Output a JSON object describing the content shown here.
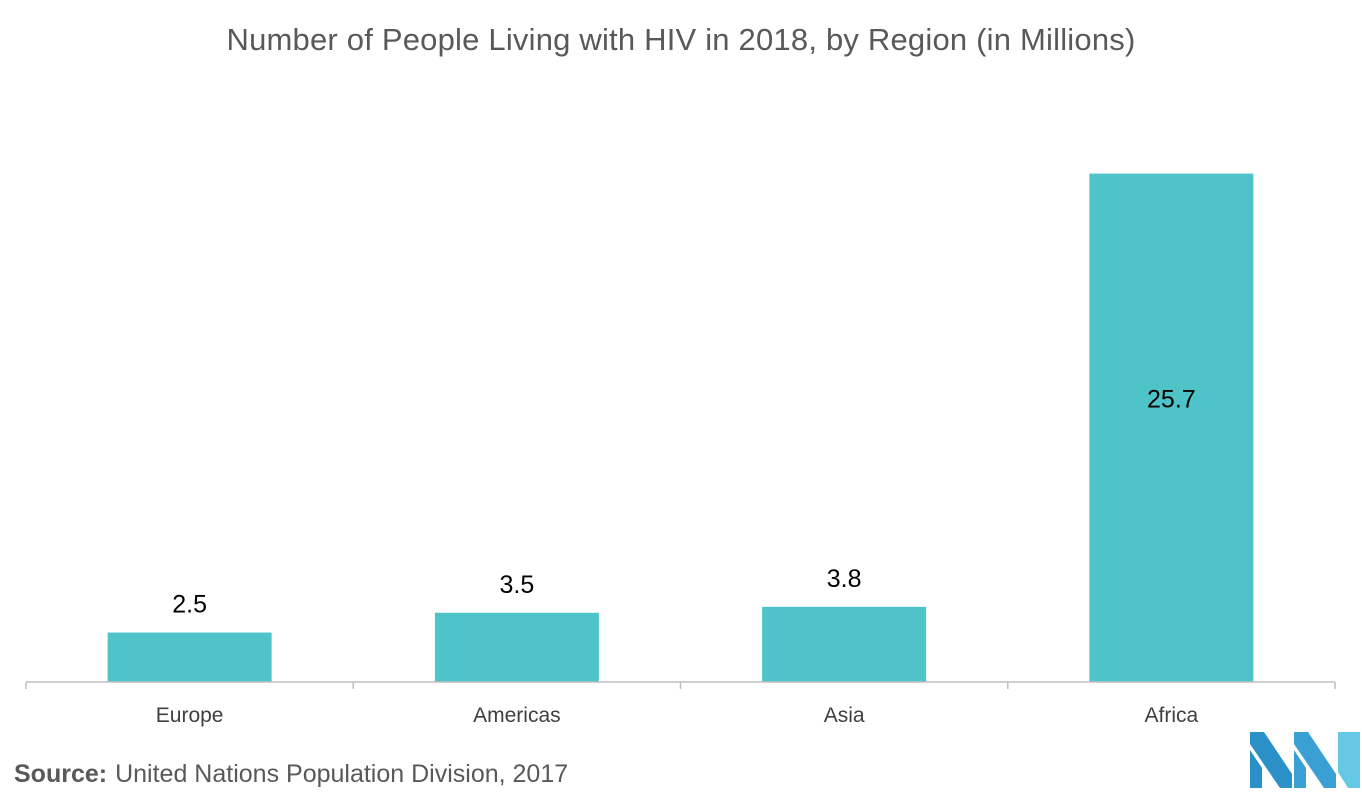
{
  "chart_data": {
    "type": "bar",
    "title": "Number of People Living with HIV in 2018, by Region (in Millions)",
    "categories": [
      "Europe",
      "Americas",
      "Asia",
      "Africa"
    ],
    "values": [
      2.5,
      3.5,
      3.8,
      25.7
    ],
    "xlabel": "",
    "ylabel": "",
    "ylim": [
      0,
      27.6
    ],
    "grid": false,
    "legend": "none",
    "data_labels": [
      "2.5",
      "3.5",
      "3.8",
      "25.7"
    ],
    "bar_color": "#4fc4c8",
    "axis_color": "#bfbfbf",
    "label_color": "#000000",
    "tick_label_color": "#404040"
  },
  "source": {
    "label": "Source:",
    "text": "United Nations Population Division, 2017"
  },
  "logo": {
    "icon": "brand-logo-icon",
    "colors": [
      "#2b8fc8",
      "#3aa0d4",
      "#67c8e6"
    ]
  }
}
